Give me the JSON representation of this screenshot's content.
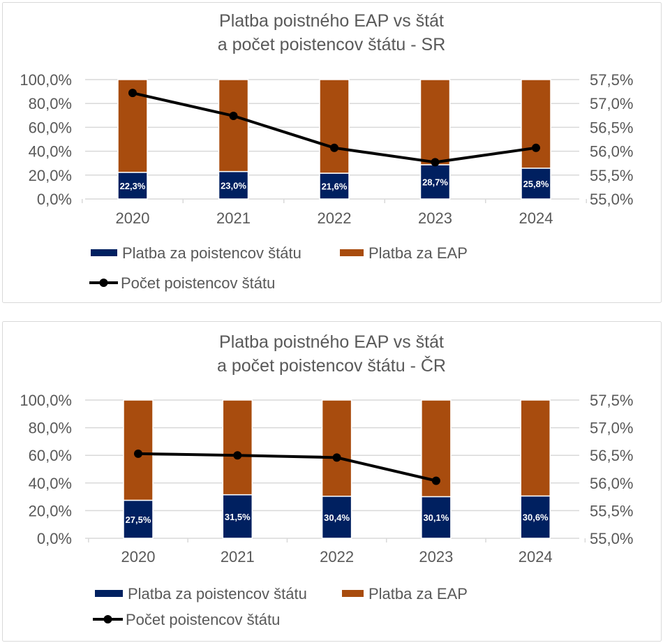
{
  "colors": {
    "state": "#002060",
    "eap": "#A84C0E",
    "line": "#000000",
    "grid": "#D9D9D9",
    "text": "#595959"
  },
  "chart_data": [
    {
      "type": "bar+line",
      "stacking": "100%",
      "title_lines": [
        "Platba poistného EAP vs štát",
        "a počet poistencov štátu - SR"
      ],
      "categories": [
        "2020",
        "2021",
        "2022",
        "2023",
        "2024"
      ],
      "y_ticks": [
        "0,0%",
        "20,0%",
        "40,0%",
        "60,0%",
        "80,0%",
        "100,0%"
      ],
      "ylim": [
        0,
        100
      ],
      "y2_ticks": [
        "55,0%",
        "55,5%",
        "56,0%",
        "56,5%",
        "57,0%",
        "57,5%"
      ],
      "y2lim": [
        55,
        57.5
      ],
      "grid": true,
      "legend_position": "bottom",
      "series": [
        {
          "name": "Platba za poistencov štátu",
          "kind": "bar",
          "axis": "left",
          "values": [
            22.3,
            23.0,
            21.6,
            28.7,
            25.8
          ],
          "labels": [
            "22,3%",
            "23,0%",
            "21,6%",
            "28,7%",
            "25,8%"
          ]
        },
        {
          "name": "Platba za EAP",
          "kind": "bar",
          "axis": "left",
          "values": [
            77.7,
            77.0,
            78.4,
            71.3,
            74.2
          ]
        },
        {
          "name": "Počet poistencov štátu",
          "kind": "line",
          "axis": "right",
          "values": [
            57.22,
            56.74,
            56.07,
            55.77,
            56.07
          ]
        }
      ]
    },
    {
      "type": "bar+line",
      "stacking": "100%",
      "title_lines": [
        "Platba poistného EAP vs štát",
        "a počet poistencov štátu - ČR"
      ],
      "categories": [
        "2020",
        "2021",
        "2022",
        "2023",
        "2024"
      ],
      "y_ticks": [
        "0,0%",
        "20,0%",
        "40,0%",
        "60,0%",
        "80,0%",
        "100,0%"
      ],
      "ylim": [
        0,
        100
      ],
      "y2_ticks": [
        "55,0%",
        "55,5%",
        "56,0%",
        "56,5%",
        "57,0%",
        "57,5%"
      ],
      "y2lim": [
        55,
        57.5
      ],
      "grid": true,
      "legend_position": "bottom",
      "series": [
        {
          "name": "Platba za poistencov štátu",
          "kind": "bar",
          "axis": "left",
          "values": [
            27.5,
            31.5,
            30.4,
            30.1,
            30.6
          ],
          "labels": [
            "27,5%",
            "31,5%",
            "30,4%",
            "30,1%",
            "30,6%"
          ]
        },
        {
          "name": "Platba za EAP",
          "kind": "bar",
          "axis": "left",
          "values": [
            72.5,
            68.5,
            69.6,
            69.9,
            69.4
          ]
        },
        {
          "name": "Počet poistencov štátu",
          "kind": "line",
          "axis": "right",
          "values": [
            56.53,
            56.5,
            56.46,
            56.04,
            null
          ]
        }
      ]
    }
  ]
}
